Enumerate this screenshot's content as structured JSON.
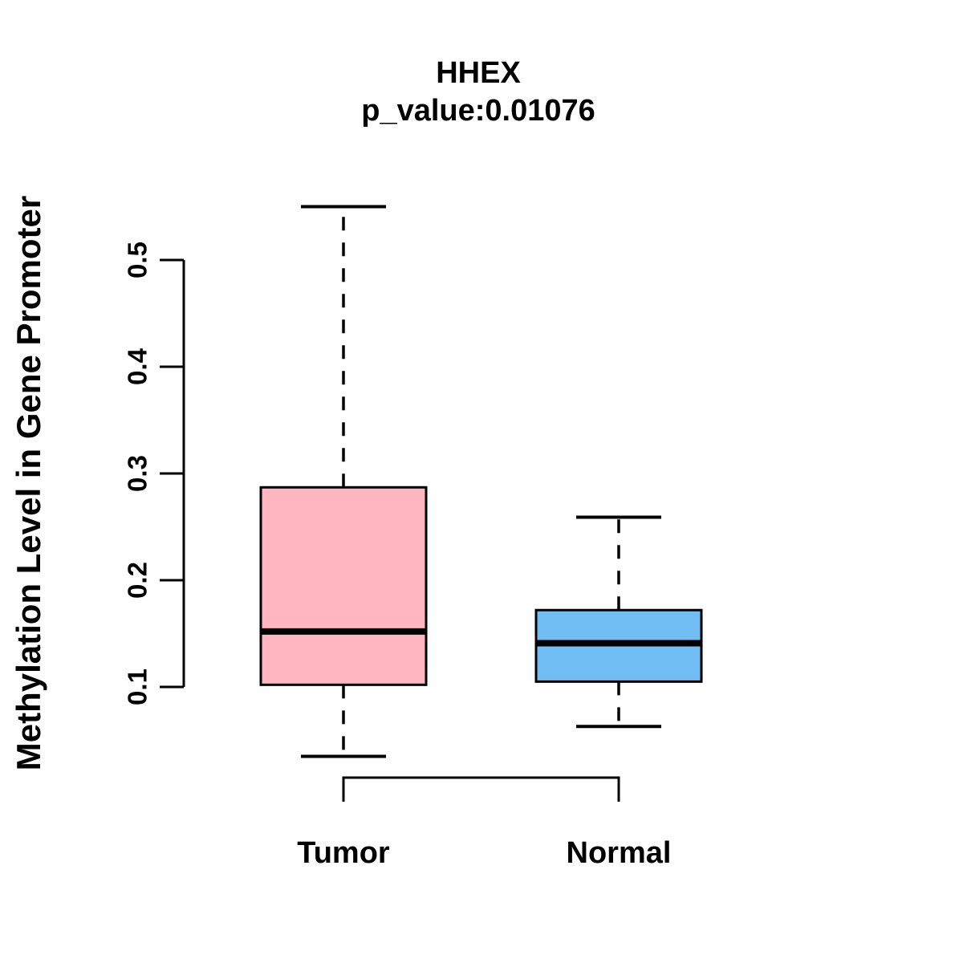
{
  "title": "HHEX",
  "subtitle": "p_value:0.01076",
  "colors": {
    "tumor_fill": "#FFB6C1",
    "normal_fill": "#71BEF5",
    "line": "#000000",
    "background": "#FFFFFF"
  },
  "chart_data": {
    "type": "boxplot",
    "title": "HHEX",
    "subtitle": "p_value:0.01076",
    "ylabel": "Methylation Level in Gene Promoter",
    "xlabel": "",
    "categories": [
      "Tumor",
      "Normal"
    ],
    "y_ticks": [
      "0.1",
      "0.2",
      "0.3",
      "0.4",
      "0.5"
    ],
    "y_tick_values": [
      0.1,
      0.2,
      0.3,
      0.4,
      0.5
    ],
    "axis_range": [
      0.1,
      0.5
    ],
    "grid": false,
    "legend": "none",
    "series": [
      {
        "name": "Tumor",
        "whisker_low": 0.035,
        "q1": 0.102,
        "median": 0.152,
        "q3": 0.287,
        "whisker_high": 0.55,
        "outliers": [],
        "color": "#FFB6C1"
      },
      {
        "name": "Normal",
        "whisker_low": 0.063,
        "q1": 0.105,
        "median": 0.141,
        "q3": 0.172,
        "whisker_high": 0.259,
        "outliers": [],
        "color": "#71BEF5"
      }
    ]
  }
}
